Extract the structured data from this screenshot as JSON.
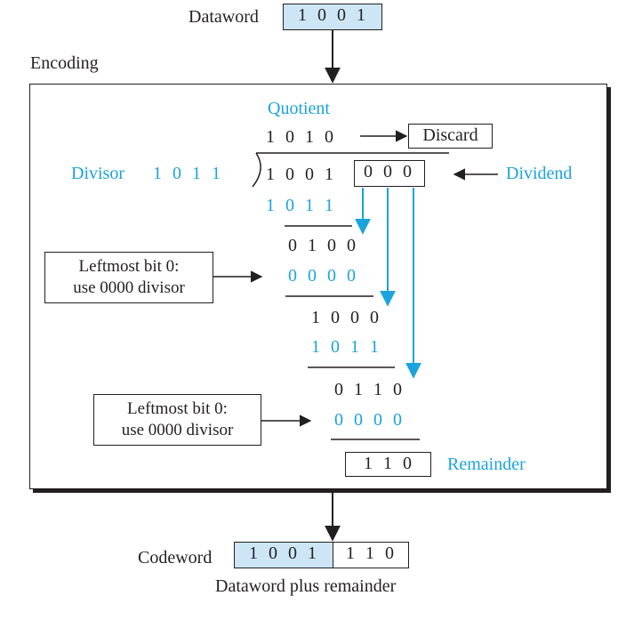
{
  "dataword": {
    "label": "Dataword",
    "bits": [
      "1",
      "0",
      "0",
      "1"
    ]
  },
  "encoding_label": "Encoding",
  "division": {
    "quotient_label": "Quotient",
    "quotient_bits": [
      "1",
      "0",
      "1",
      "0"
    ],
    "discard_label": "Discard",
    "divisor_label": "Divisor",
    "divisor_bits": [
      "1",
      "0",
      "1",
      "1"
    ],
    "dividend_label": "Dividend",
    "dividend_bits": [
      "1",
      "0",
      "0",
      "1"
    ],
    "augmented_bits": [
      "0",
      "0",
      "0"
    ],
    "step1_subtract": [
      "1",
      "0",
      "1",
      "1"
    ],
    "step1_result": [
      "0",
      "1",
      "0",
      "0"
    ],
    "step2_subtract": [
      "0",
      "0",
      "0",
      "0"
    ],
    "step2_result": [
      "1",
      "0",
      "0",
      "0"
    ],
    "step3_subtract": [
      "1",
      "0",
      "1",
      "1"
    ],
    "step3_result": [
      "0",
      "1",
      "1",
      "0"
    ],
    "step4_subtract": [
      "0",
      "0",
      "0",
      "0"
    ],
    "remainder_bits": [
      "1",
      "1",
      "0"
    ],
    "remainder_label": "Remainder"
  },
  "notes": {
    "note1_line1": "Leftmost bit 0:",
    "note1_line2": "use 0000 divisor",
    "note2_line1": "Leftmost bit 0:",
    "note2_line2": "use 0000 divisor"
  },
  "codeword": {
    "label": "Codeword",
    "data_bits": [
      "1",
      "0",
      "0",
      "1"
    ],
    "remainder_bits": [
      "1",
      "1",
      "0"
    ],
    "caption": "Dataword plus remainder"
  },
  "colors": {
    "accent": "#1aa3dc",
    "shade": "#cce6f6",
    "ink": "#231f20"
  }
}
